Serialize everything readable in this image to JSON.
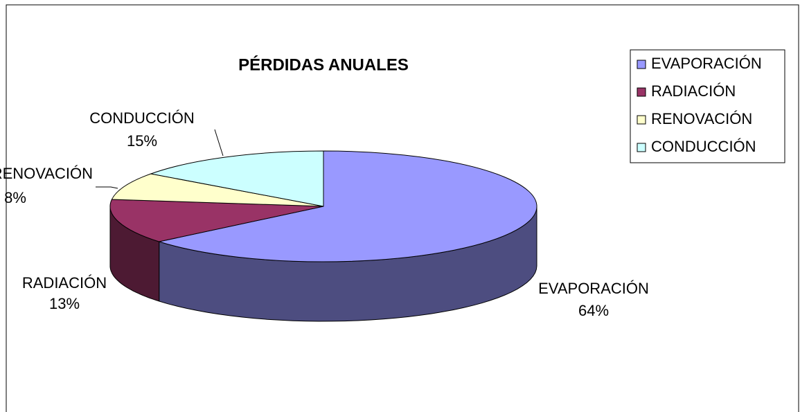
{
  "chart_data": {
    "type": "pie3d",
    "title": "PÉRDIDAS ANUALES",
    "categories": [
      "EVAPORACIÓN",
      "RADIACIÓN",
      "RENOVACIÓN",
      "CONDUCCIÓN"
    ],
    "values": [
      64,
      13,
      8,
      15
    ],
    "value_labels": [
      "64%",
      "13%",
      "8%",
      "15%"
    ],
    "colors": [
      "#9999ff",
      "#993366",
      "#ffffcc",
      "#ccffff"
    ],
    "legend": "right"
  }
}
